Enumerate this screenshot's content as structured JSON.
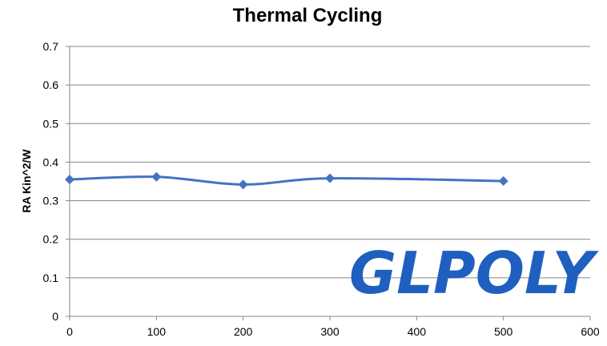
{
  "chart_data": {
    "type": "line",
    "title": "Thermal Cycling",
    "xlabel": "",
    "ylabel": "RA  Kin^2/W",
    "xlim": [
      0,
      600
    ],
    "ylim": [
      0,
      0.7
    ],
    "xticks": [
      0,
      100,
      200,
      300,
      400,
      500,
      600
    ],
    "yticks": [
      0,
      0.1,
      0.2,
      0.3,
      0.4,
      0.5,
      0.6,
      0.7
    ],
    "ytick_labels": [
      "0",
      "0.1",
      "0.2",
      "0.3",
      "0.4",
      "0.5",
      "0.6",
      "0.7"
    ],
    "grid": true,
    "series": [
      {
        "x": [
          0,
          100,
          200,
          300,
          500
        ],
        "y": [
          0.355,
          0.362,
          0.342,
          0.358,
          0.351
        ],
        "color": "#4472c4",
        "marker": "diamond"
      }
    ]
  },
  "watermark": {
    "text": "GLPOLY",
    "color": "#1f5fbf"
  }
}
